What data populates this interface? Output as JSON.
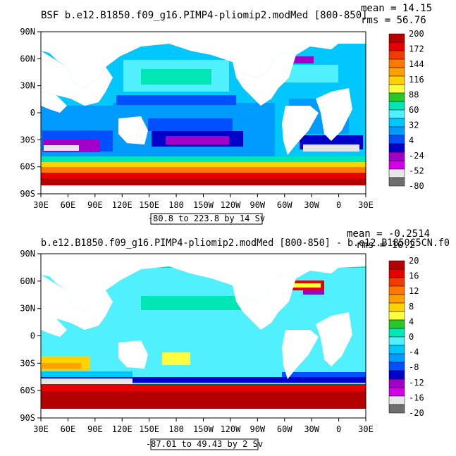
{
  "chart_data": [
    {
      "type": "heatmap",
      "title": "BSF b.e12.B1850.f09_g16.PIMP4-pliomip2.modMed [800-850]",
      "stats": [
        "mean = 14.15",
        "rms = 56.76"
      ],
      "x_ticks": [
        "30E",
        "60E",
        "90E",
        "120E",
        "150E",
        "180",
        "150W",
        "120W",
        "90W",
        "60W",
        "30W",
        "0",
        "30E"
      ],
      "y_ticks": [
        "90N",
        "60N",
        "30N",
        "0",
        "30S",
        "60S",
        "90S"
      ],
      "contour_info": "-80.8 to 223.8 by 14 Sv",
      "colorbar": {
        "labels": [
          "200",
          "172",
          "144",
          "116",
          "88",
          "60",
          "32",
          "4",
          "-24",
          "-52",
          "-80"
        ],
        "colors": [
          "#b40000",
          "#e60000",
          "#f03c00",
          "#ff7800",
          "#ffa000",
          "#ffd200",
          "#ffff40",
          "#28c828",
          "#00e6b4",
          "#50f0ff",
          "#00c8ff",
          "#009bff",
          "#0050ff",
          "#0000c8",
          "#a000c8",
          "#d200e6",
          "#e6e6e6",
          "#6e6e6e"
        ]
      }
    },
    {
      "type": "heatmap",
      "title": "b.e12.B1850.f09_g16.PIMP4-pliomip2.modMed [800-850] - b.e12.B1850C5CN.f0",
      "stats": [
        "mean = -0.2514",
        "rms = 10.2"
      ],
      "x_ticks": [
        "30E",
        "60E",
        "90E",
        "120E",
        "150E",
        "180",
        "150W",
        "120W",
        "90W",
        "60W",
        "30W",
        "0",
        "30E"
      ],
      "y_ticks": [
        "90N",
        "60N",
        "30N",
        "0",
        "30S",
        "60S",
        "90S"
      ],
      "contour_info": "-87.01 to 49.43 by 2 Sv",
      "colorbar": {
        "labels": [
          "20",
          "16",
          "12",
          "8",
          "4",
          "0",
          "-4",
          "-8",
          "-12",
          "-16",
          "-20"
        ],
        "colors": [
          "#b40000",
          "#e60000",
          "#f03c00",
          "#ff7800",
          "#ffa000",
          "#ffd200",
          "#ffff40",
          "#28c828",
          "#00e6b4",
          "#50f0ff",
          "#00c8ff",
          "#009bff",
          "#0050ff",
          "#0000c8",
          "#a000c8",
          "#d200e6",
          "#e6e6e6",
          "#6e6e6e"
        ]
      }
    }
  ]
}
